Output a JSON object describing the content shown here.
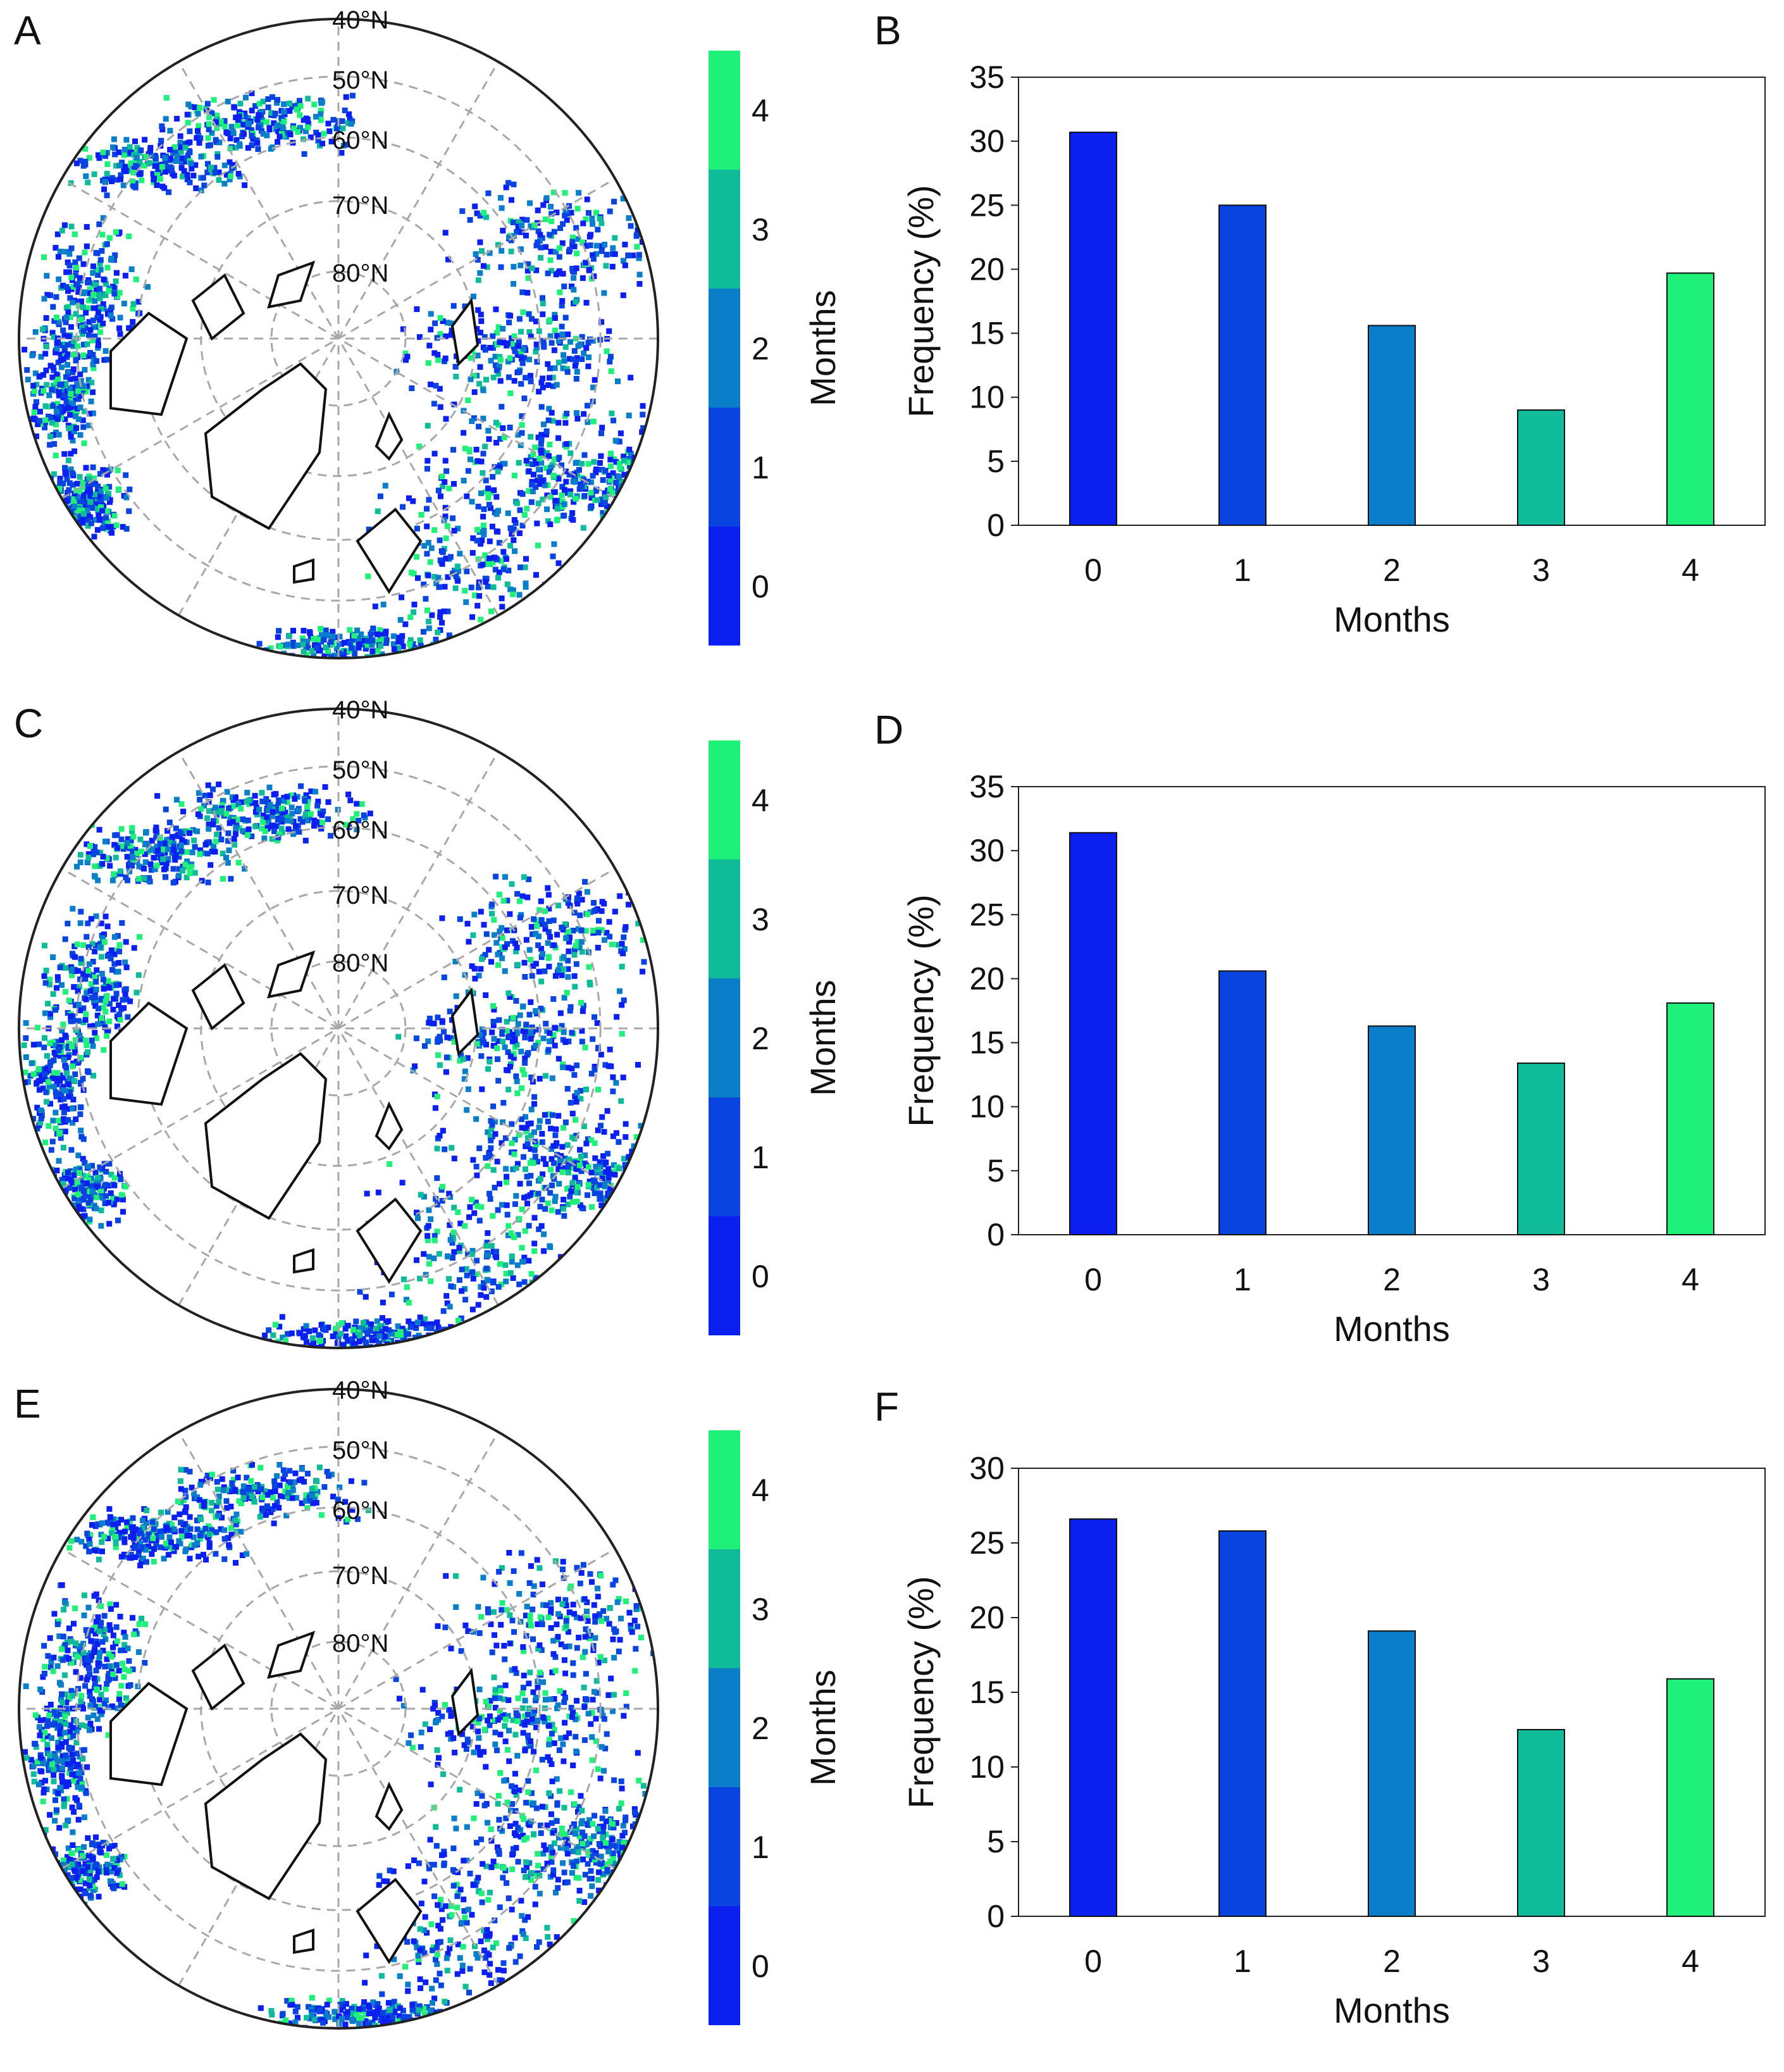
{
  "colors": {
    "month_0": "#0a1ff0",
    "month_1": "#0a44e0",
    "month_2": "#0a7ec8",
    "month_3": "#10bb9a",
    "month_4": "#1ef07a",
    "land_outline": "#111111",
    "grid": "#a8a8a8"
  },
  "maps": [
    {
      "panel": "A",
      "colorbar_label": "Months",
      "colorbar_ticks": [
        "0",
        "1",
        "2",
        "3",
        "4"
      ],
      "lat_labels": [
        "40°N",
        "50°N",
        "60°N",
        "70°N",
        "80°N"
      ]
    },
    {
      "panel": "C",
      "colorbar_label": "Months",
      "colorbar_ticks": [
        "0",
        "1",
        "2",
        "3",
        "4"
      ],
      "lat_labels": [
        "40°N",
        "50°N",
        "60°N",
        "70°N",
        "80°N"
      ]
    },
    {
      "panel": "E",
      "colorbar_label": "Months",
      "colorbar_ticks": [
        "0",
        "1",
        "2",
        "3",
        "4"
      ],
      "lat_labels": [
        "40°N",
        "50°N",
        "60°N",
        "70°N",
        "80°N"
      ]
    }
  ],
  "chart_data": [
    {
      "panel": "B",
      "type": "bar",
      "categories": [
        "0",
        "1",
        "2",
        "3",
        "4"
      ],
      "values": [
        30.7,
        25.0,
        15.6,
        9.0,
        19.7
      ],
      "xlabel": "Months",
      "ylabel": "Frequency (%)",
      "ylim": [
        0,
        35
      ],
      "yticks": [
        0,
        5,
        10,
        15,
        20,
        25,
        30,
        35
      ]
    },
    {
      "panel": "D",
      "type": "bar",
      "categories": [
        "0",
        "1",
        "2",
        "3",
        "4"
      ],
      "values": [
        31.4,
        20.6,
        16.3,
        13.4,
        18.1
      ],
      "xlabel": "Months",
      "ylabel": "Frequency (%)",
      "ylim": [
        0,
        35
      ],
      "yticks": [
        0,
        5,
        10,
        15,
        20,
        25,
        30,
        35
      ]
    },
    {
      "panel": "F",
      "type": "bar",
      "categories": [
        "0",
        "1",
        "2",
        "3",
        "4"
      ],
      "values": [
        26.6,
        25.8,
        19.1,
        12.5,
        15.9
      ],
      "xlabel": "Months",
      "ylabel": "Frequency (%)",
      "ylim": [
        0,
        30
      ],
      "yticks": [
        0,
        5,
        10,
        15,
        20,
        25,
        30
      ]
    }
  ]
}
